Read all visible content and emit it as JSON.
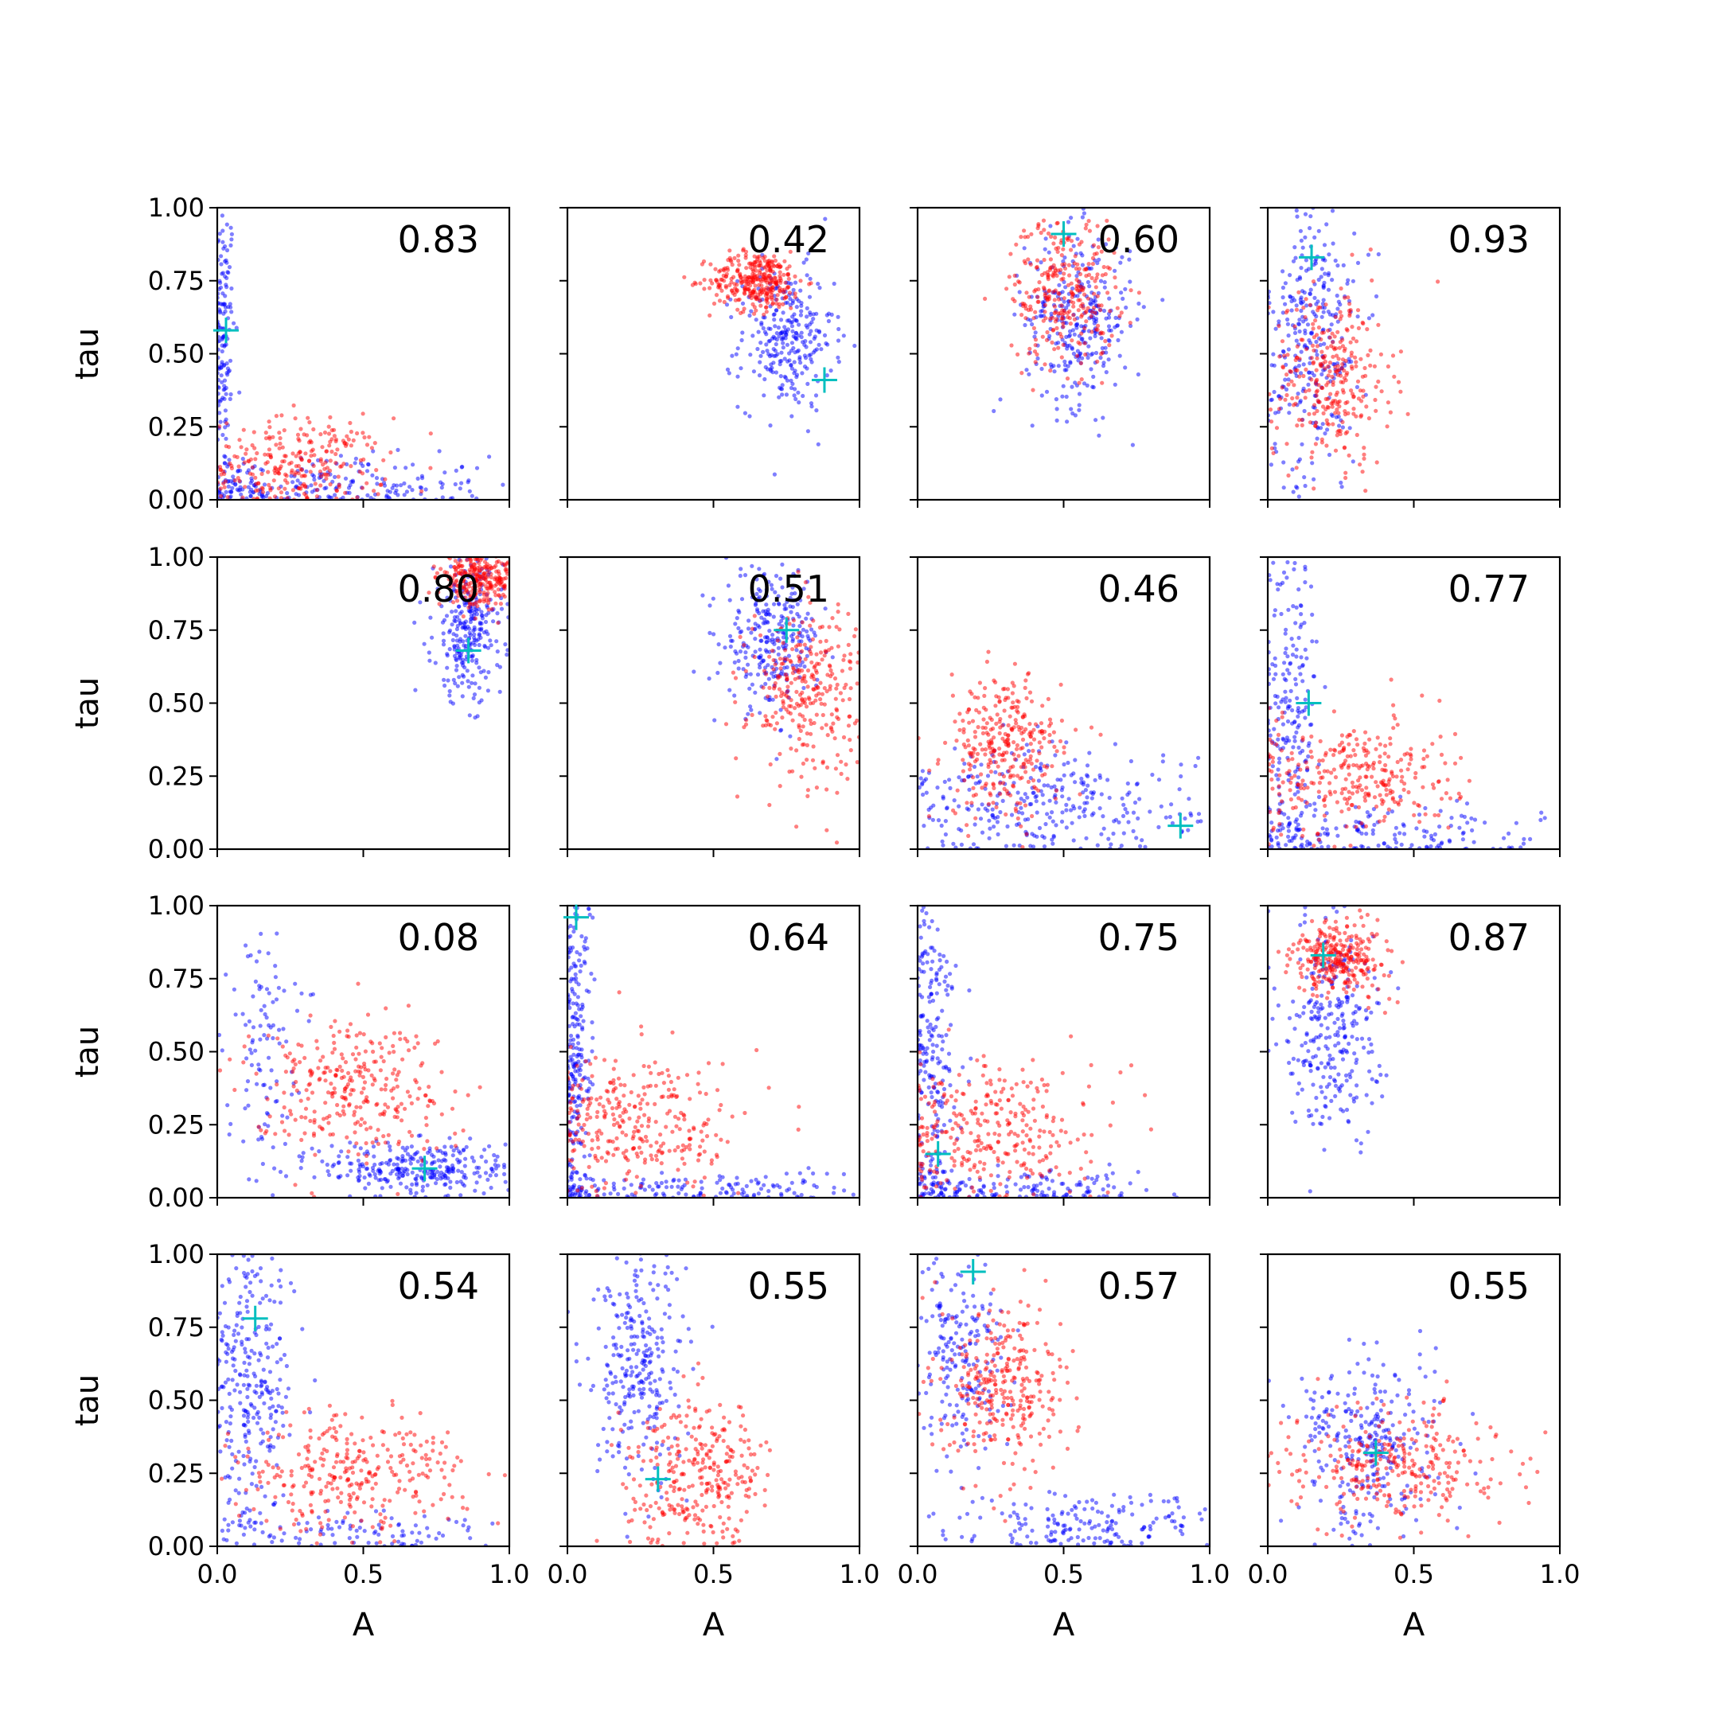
{
  "chart_data": {
    "type": "scatter",
    "layout": {
      "rows": 4,
      "cols": 4
    },
    "xlabel": "A",
    "ylabel": "tau",
    "xlim": [
      0,
      1
    ],
    "ylim": [
      0,
      1
    ],
    "xticks": [
      "0.0",
      "0.5",
      "1.0"
    ],
    "yticks": [
      "0.00",
      "0.25",
      "0.50",
      "0.75",
      "1.00"
    ],
    "xtick_values": [
      0,
      0.5,
      1
    ],
    "ytick_values": [
      0,
      0.25,
      0.5,
      0.75,
      1
    ],
    "grid": false,
    "series_colors": {
      "blue": "#0000ff",
      "red": "#ff0000",
      "marker": "#00bfbf"
    },
    "panels": [
      {
        "label": "0.83",
        "marker": [
          0.03,
          0.58
        ],
        "blue": {
          "clusters": [
            {
              "cx": 0.02,
              "cy": 0.55,
              "sx": 0.02,
              "sy": 0.25,
              "n": 140
            },
            {
              "cx": 0.35,
              "cy": 0.05,
              "sx": 0.3,
              "sy": 0.05,
              "n": 220
            }
          ]
        },
        "red": {
          "clusters": [
            {
              "cx": 0.28,
              "cy": 0.12,
              "sx": 0.15,
              "sy": 0.08,
              "n": 260
            }
          ]
        }
      },
      {
        "label": "0.42",
        "marker": [
          0.88,
          0.41
        ],
        "blue": {
          "clusters": [
            {
              "cx": 0.75,
              "cy": 0.55,
              "sx": 0.08,
              "sy": 0.12,
              "n": 280
            }
          ]
        },
        "red": {
          "clusters": [
            {
              "cx": 0.65,
              "cy": 0.75,
              "sx": 0.08,
              "sy": 0.05,
              "n": 320
            }
          ]
        }
      },
      {
        "label": "0.60",
        "marker": [
          0.5,
          0.91
        ],
        "blue": {
          "clusters": [
            {
              "cx": 0.55,
              "cy": 0.62,
              "sx": 0.09,
              "sy": 0.15,
              "n": 300
            }
          ]
        },
        "red": {
          "clusters": [
            {
              "cx": 0.5,
              "cy": 0.72,
              "sx": 0.09,
              "sy": 0.13,
              "n": 300
            }
          ]
        }
      },
      {
        "label": "0.93",
        "marker": [
          0.15,
          0.83
        ],
        "blue": {
          "clusters": [
            {
              "cx": 0.15,
              "cy": 0.55,
              "sx": 0.08,
              "sy": 0.25,
              "n": 300
            }
          ]
        },
        "red": {
          "clusters": [
            {
              "cx": 0.22,
              "cy": 0.42,
              "sx": 0.1,
              "sy": 0.15,
              "n": 300
            }
          ]
        }
      },
      {
        "label": "0.80",
        "marker": [
          0.86,
          0.68
        ],
        "blue": {
          "clusters": [
            {
              "cx": 0.86,
              "cy": 0.75,
              "sx": 0.06,
              "sy": 0.12,
              "n": 280
            }
          ]
        },
        "red": {
          "clusters": [
            {
              "cx": 0.9,
              "cy": 0.93,
              "sx": 0.07,
              "sy": 0.05,
              "n": 300
            }
          ]
        }
      },
      {
        "label": "0.51",
        "marker": [
          0.75,
          0.75
        ],
        "blue": {
          "clusters": [
            {
              "cx": 0.7,
              "cy": 0.72,
              "sx": 0.08,
              "sy": 0.12,
              "n": 280
            }
          ]
        },
        "red": {
          "clusters": [
            {
              "cx": 0.82,
              "cy": 0.55,
              "sx": 0.1,
              "sy": 0.15,
              "n": 300
            }
          ]
        }
      },
      {
        "label": "0.46",
        "marker": [
          0.9,
          0.08
        ],
        "blue": {
          "clusters": [
            {
              "cx": 0.45,
              "cy": 0.15,
              "sx": 0.25,
              "sy": 0.1,
              "n": 300
            }
          ]
        },
        "red": {
          "clusters": [
            {
              "cx": 0.3,
              "cy": 0.35,
              "sx": 0.1,
              "sy": 0.12,
              "n": 300
            }
          ]
        }
      },
      {
        "label": "0.77",
        "marker": [
          0.14,
          0.5
        ],
        "blue": {
          "clusters": [
            {
              "cx": 0.08,
              "cy": 0.5,
              "sx": 0.05,
              "sy": 0.3,
              "n": 220
            },
            {
              "cx": 0.4,
              "cy": 0.05,
              "sx": 0.25,
              "sy": 0.05,
              "n": 150
            }
          ]
        },
        "red": {
          "clusters": [
            {
              "cx": 0.3,
              "cy": 0.25,
              "sx": 0.17,
              "sy": 0.1,
              "n": 300
            }
          ]
        }
      },
      {
        "label": "0.08",
        "marker": [
          0.71,
          0.1
        ],
        "blue": {
          "clusters": [
            {
              "cx": 0.7,
              "cy": 0.1,
              "sx": 0.17,
              "sy": 0.05,
              "n": 300
            },
            {
              "cx": 0.15,
              "cy": 0.55,
              "sx": 0.06,
              "sy": 0.2,
              "n": 100
            }
          ]
        },
        "red": {
          "clusters": [
            {
              "cx": 0.45,
              "cy": 0.38,
              "sx": 0.17,
              "sy": 0.12,
              "n": 300
            }
          ]
        }
      },
      {
        "label": "0.64",
        "marker": [
          0.03,
          0.96
        ],
        "blue": {
          "clusters": [
            {
              "cx": 0.03,
              "cy": 0.5,
              "sx": 0.03,
              "sy": 0.3,
              "n": 230
            },
            {
              "cx": 0.4,
              "cy": 0.03,
              "sx": 0.3,
              "sy": 0.03,
              "n": 150
            }
          ]
        },
        "red": {
          "clusters": [
            {
              "cx": 0.25,
              "cy": 0.25,
              "sx": 0.17,
              "sy": 0.12,
              "n": 300
            }
          ]
        }
      },
      {
        "label": "0.75",
        "marker": [
          0.07,
          0.15
        ],
        "blue": {
          "clusters": [
            {
              "cx": 0.05,
              "cy": 0.5,
              "sx": 0.04,
              "sy": 0.3,
              "n": 220
            },
            {
              "cx": 0.35,
              "cy": 0.03,
              "sx": 0.25,
              "sy": 0.03,
              "n": 150
            }
          ]
        },
        "red": {
          "clusters": [
            {
              "cx": 0.25,
              "cy": 0.22,
              "sx": 0.17,
              "sy": 0.12,
              "n": 300
            }
          ]
        }
      },
      {
        "label": "0.87",
        "marker": [
          0.19,
          0.83
        ],
        "blue": {
          "clusters": [
            {
              "cx": 0.22,
              "cy": 0.6,
              "sx": 0.08,
              "sy": 0.2,
              "n": 280
            }
          ]
        },
        "red": {
          "clusters": [
            {
              "cx": 0.25,
              "cy": 0.82,
              "sx": 0.08,
              "sy": 0.06,
              "n": 300
            }
          ]
        }
      },
      {
        "label": "0.54",
        "marker": [
          0.13,
          0.78
        ],
        "blue": {
          "clusters": [
            {
              "cx": 0.12,
              "cy": 0.55,
              "sx": 0.07,
              "sy": 0.25,
              "n": 280
            },
            {
              "cx": 0.5,
              "cy": 0.05,
              "sx": 0.3,
              "sy": 0.04,
              "n": 100
            }
          ]
        },
        "red": {
          "clusters": [
            {
              "cx": 0.45,
              "cy": 0.25,
              "sx": 0.2,
              "sy": 0.1,
              "n": 300
            }
          ]
        }
      },
      {
        "label": "0.55",
        "marker": [
          0.31,
          0.23
        ],
        "blue": {
          "clusters": [
            {
              "cx": 0.25,
              "cy": 0.6,
              "sx": 0.08,
              "sy": 0.2,
              "n": 280
            }
          ]
        },
        "red": {
          "clusters": [
            {
              "cx": 0.45,
              "cy": 0.25,
              "sx": 0.12,
              "sy": 0.12,
              "n": 300
            }
          ]
        }
      },
      {
        "label": "0.57",
        "marker": [
          0.19,
          0.94
        ],
        "blue": {
          "clusters": [
            {
              "cx": 0.15,
              "cy": 0.65,
              "sx": 0.07,
              "sy": 0.2,
              "n": 200
            },
            {
              "cx": 0.6,
              "cy": 0.07,
              "sx": 0.25,
              "sy": 0.05,
              "n": 180
            }
          ]
        },
        "red": {
          "clusters": [
            {
              "cx": 0.3,
              "cy": 0.55,
              "sx": 0.1,
              "sy": 0.15,
              "n": 300
            }
          ]
        }
      },
      {
        "label": "0.55",
        "marker": [
          0.37,
          0.32
        ],
        "blue": {
          "clusters": [
            {
              "cx": 0.35,
              "cy": 0.35,
              "sx": 0.12,
              "sy": 0.15,
              "n": 280
            }
          ]
        },
        "red": {
          "clusters": [
            {
              "cx": 0.45,
              "cy": 0.28,
              "sx": 0.18,
              "sy": 0.1,
              "n": 300
            }
          ]
        }
      }
    ]
  }
}
